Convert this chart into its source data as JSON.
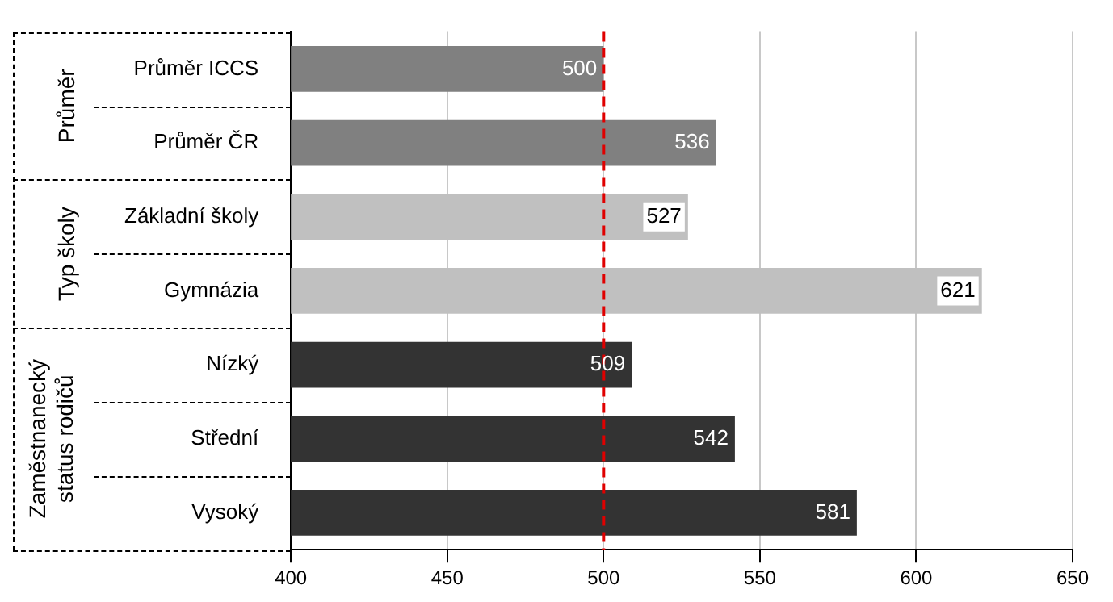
{
  "chart_data": {
    "type": "bar",
    "orientation": "horizontal",
    "categories": [
      "Průměr ICCS",
      "Průměr ČR",
      "Základní školy",
      "Gymnázia",
      "Nízký",
      "Střední",
      "Vysoký"
    ],
    "values": [
      500,
      536,
      527,
      621,
      509,
      542,
      581
    ],
    "colors": [
      "#808080",
      "#808080",
      "#c0c0c0",
      "#c0c0c0",
      "#333333",
      "#333333",
      "#333333"
    ],
    "xlim": [
      400,
      650
    ],
    "xticks": [
      400,
      450,
      500,
      550,
      600,
      650
    ],
    "grid": "x",
    "data_labels": true,
    "legend": false,
    "ref_lines": [
      {
        "axis": "x",
        "value": 500,
        "color": "#e00000",
        "line_style": "dashed"
      }
    ],
    "annotations": [
      "Průměr",
      "Typ školy",
      "Zaměstnanecký status rodičů"
    ]
  }
}
